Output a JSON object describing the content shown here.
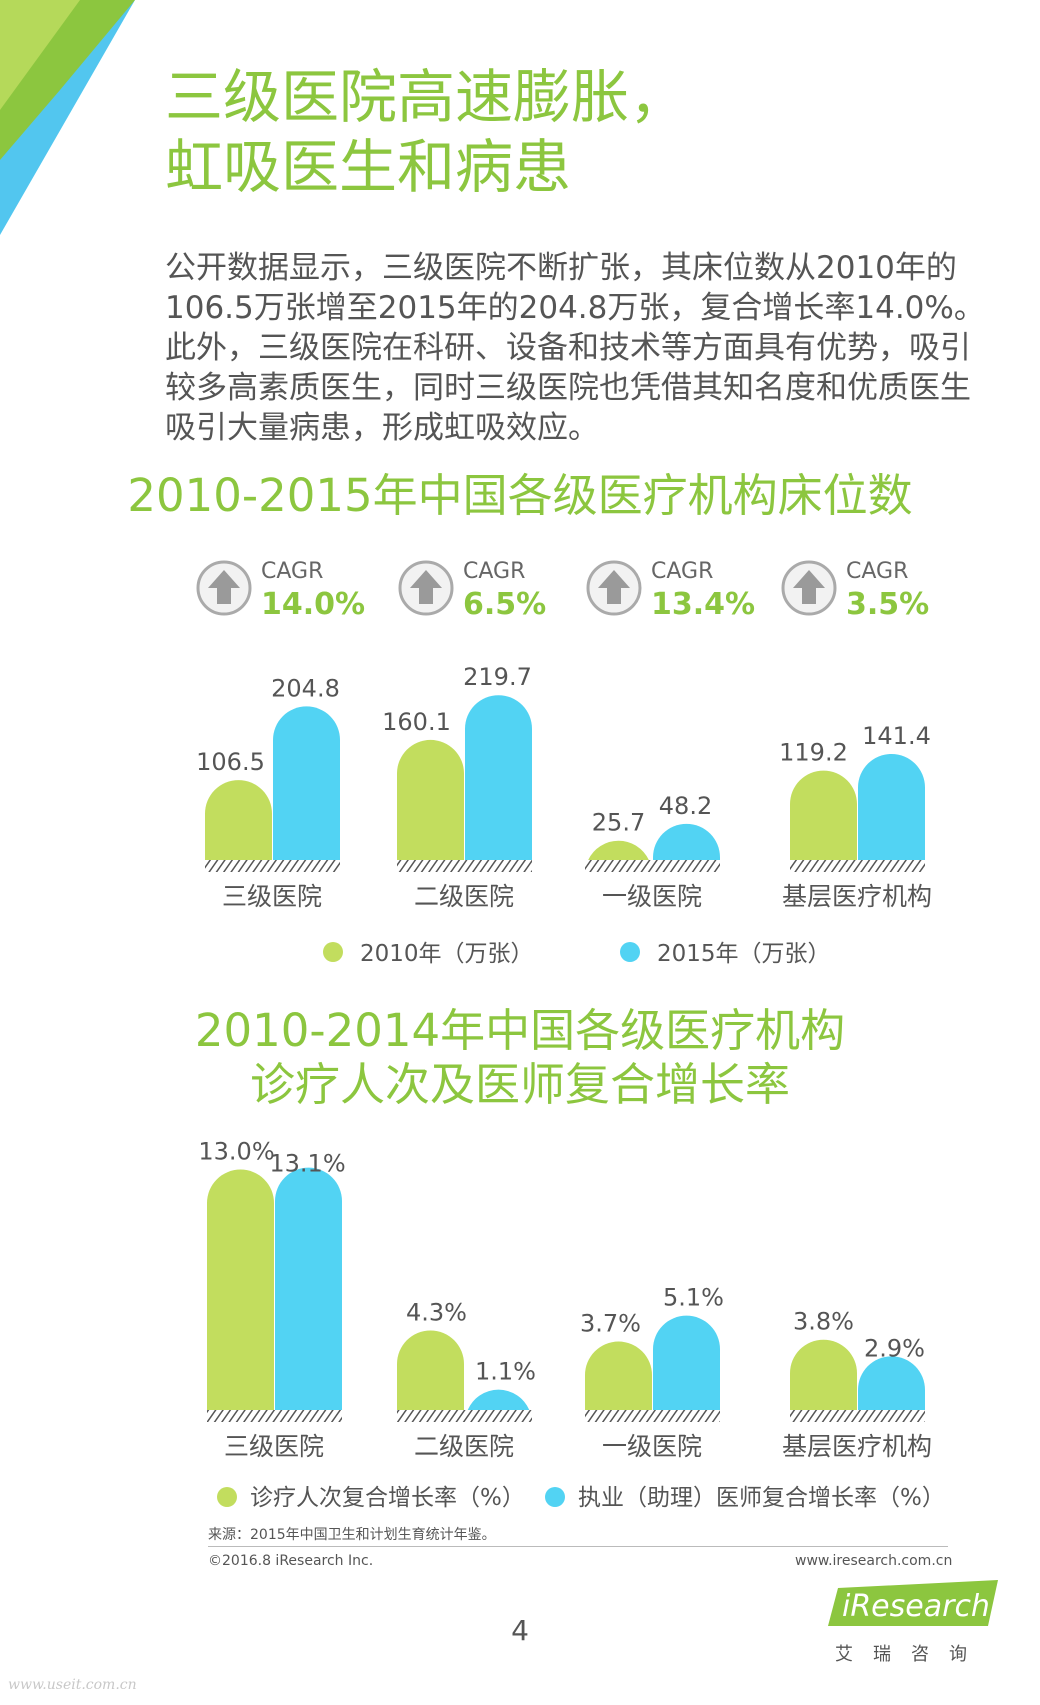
{
  "page_title": [
    "三级医院高速膨胀，",
    "虹吸医生和病患"
  ],
  "intro_text": "公开数据显示，三级医院不断扩张，其床位数从2010年的106.5万张增至2015年的204.8万张，复合增长率14.0%。此外，三级医院在科研、设备和技术等方面具有优势，吸引较多高素质医生，同时三级医院也凭借其知名度和优质医生吸引大量病患，形成虹吸效应。",
  "cagr_label": "CAGR",
  "colors": {
    "green": "#c2dd5e",
    "blue": "#52d3f3",
    "title_green": "#8cc63f"
  },
  "chart_data": [
    {
      "type": "bar",
      "title": "2010-2015年中国各级医疗机构床位数",
      "categories": [
        "三级医院",
        "二级医院",
        "一级医院",
        "基层医疗机构"
      ],
      "series": [
        {
          "name": "2010年（万张）",
          "values": [
            106.5,
            160.1,
            25.7,
            119.2
          ],
          "labels": [
            "106.5",
            "160.1",
            "25.7",
            "119.2"
          ]
        },
        {
          "name": "2015年（万张）",
          "values": [
            204.8,
            219.7,
            48.2,
            141.4
          ],
          "labels": [
            "204.8",
            "219.7",
            "48.2",
            "141.4"
          ]
        }
      ],
      "cagr": [
        "14.0%",
        "6.5%",
        "13.4%",
        "3.5%"
      ]
    },
    {
      "type": "bar",
      "title": "2010-2014年中国各级医疗机构诊疗人次及医师复合增长率",
      "title_lines": [
        "2010-2014年中国各级医疗机构",
        "诊疗人次及医师复合增长率"
      ],
      "categories": [
        "三级医院",
        "二级医院",
        "一级医院",
        "基层医疗机构"
      ],
      "series": [
        {
          "name": "诊疗人次复合增长率（%）",
          "values": [
            13.0,
            4.3,
            3.7,
            3.8
          ],
          "labels": [
            "13.0%",
            "4.3%",
            "3.7%",
            "3.8%"
          ]
        },
        {
          "name": "执业（助理）医师复合增长率（%）",
          "values": [
            13.1,
            1.1,
            5.1,
            2.9
          ],
          "labels": [
            "13.1%",
            "1.1%",
            "5.1%",
            "2.9%"
          ]
        }
      ]
    }
  ],
  "source": "来源：2015年中国卫生和计划生育统计年鉴。",
  "copyright": "©2016.8 iResearch Inc.",
  "website": "www.iresearch.com.cn",
  "page_number": "4",
  "logo_text": "iResearch",
  "logo_sub": "艾瑞咨询",
  "watermark": "www.useit.com.cn"
}
